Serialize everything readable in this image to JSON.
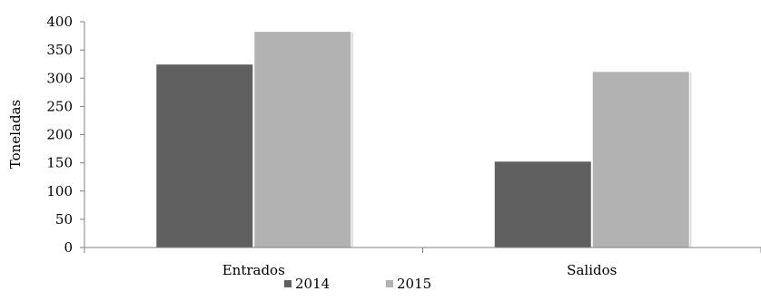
{
  "chart_data": {
    "type": "bar",
    "categories": [
      "Entrados",
      "Salidos"
    ],
    "series": [
      {
        "name": "2014",
        "values": [
          325,
          153
        ],
        "color": "#606060"
      },
      {
        "name": "2015",
        "values": [
          383,
          312
        ],
        "color": "#b2b2b2"
      }
    ],
    "ylabel": "Toneladas",
    "xlabel": "",
    "title": "",
    "ylim": [
      0,
      400
    ],
    "yticks": [
      0,
      50,
      100,
      150,
      200,
      250,
      300,
      350,
      400
    ],
    "grid": false,
    "legend_position": "bottom"
  }
}
